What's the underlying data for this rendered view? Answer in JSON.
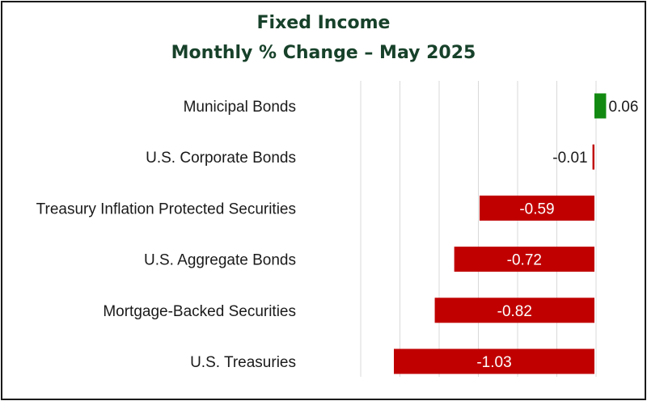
{
  "chart_data": {
    "type": "bar",
    "orientation": "horizontal",
    "title": "Fixed Income",
    "subtitle": "Monthly % Change – May 2025",
    "categories": [
      "Municipal Bonds",
      "U.S. Corporate Bonds",
      "Treasury Inflation Protected Securities",
      "U.S. Aggregate Bonds",
      "Mortgage-Backed Securities",
      "U.S. Treasuries"
    ],
    "values": [
      0.06,
      -0.01,
      -0.59,
      -0.72,
      -0.82,
      -1.03
    ],
    "value_labels": [
      "0.06",
      "-0.01",
      "-0.59",
      "-0.72",
      "-0.82",
      "-1.03"
    ],
    "xlim": [
      -1.2,
      0.1
    ],
    "grid": true,
    "colors": {
      "positive": "#128a12",
      "negative": "#c00000",
      "title": "#17412a",
      "grid": "#d9d9d9"
    }
  }
}
